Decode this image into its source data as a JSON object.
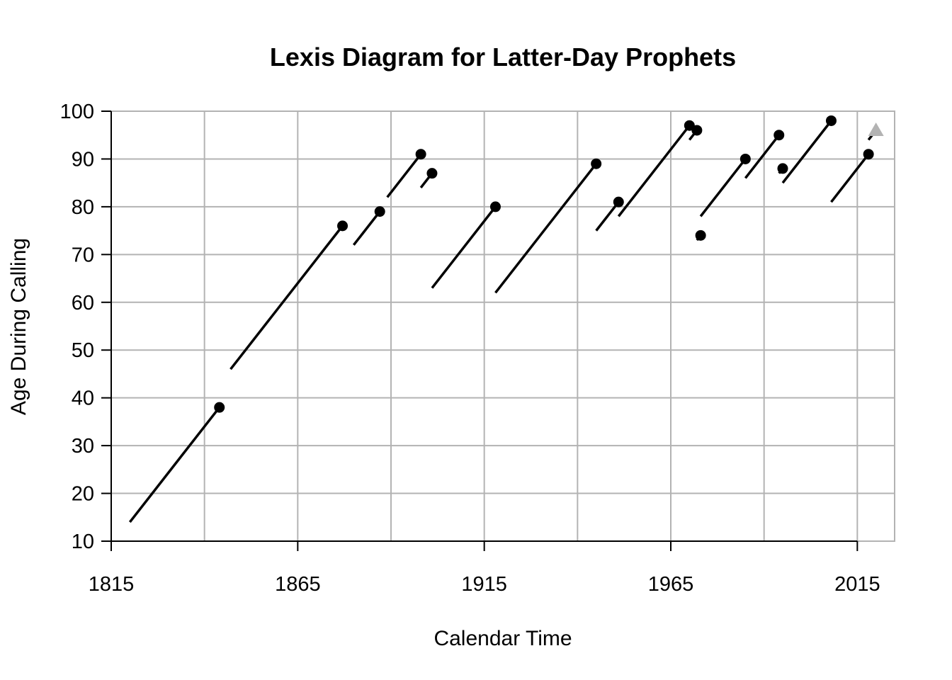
{
  "chart_data": {
    "type": "line",
    "title": "Lexis Diagram for Latter-Day Prophets",
    "xlabel": "Calendar Time",
    "ylabel": "Age During Calling",
    "xlim": [
      1815,
      2025
    ],
    "ylim": [
      10,
      100
    ],
    "x_ticks": [
      1815,
      1865,
      1915,
      1965,
      2015
    ],
    "y_ticks": [
      10,
      20,
      30,
      40,
      50,
      60,
      70,
      80,
      90,
      100
    ],
    "grid": true,
    "grid_color": "#b3b3b3",
    "line_color": "#000000",
    "point_color": "#000000",
    "living_marker_color": "#b3b3b3",
    "series": [
      {
        "start": [
          1820,
          14
        ],
        "end": [
          1844,
          38
        ],
        "end_marker": "point"
      },
      {
        "start": [
          1847,
          46
        ],
        "end": [
          1877,
          76
        ],
        "end_marker": "point"
      },
      {
        "start": [
          1880,
          72
        ],
        "end": [
          1887,
          79
        ],
        "end_marker": "point"
      },
      {
        "start": [
          1889,
          82
        ],
        "end": [
          1898,
          91
        ],
        "end_marker": "point"
      },
      {
        "start": [
          1898,
          84
        ],
        "end": [
          1901,
          87
        ],
        "end_marker": "point"
      },
      {
        "start": [
          1901,
          63
        ],
        "end": [
          1918,
          80
        ],
        "end_marker": "point"
      },
      {
        "start": [
          1918,
          62
        ],
        "end": [
          1945,
          89
        ],
        "end_marker": "point"
      },
      {
        "start": [
          1945,
          75
        ],
        "end": [
          1951,
          81
        ],
        "end_marker": "point"
      },
      {
        "start": [
          1951,
          78
        ],
        "end": [
          1970,
          97
        ],
        "end_marker": "point"
      },
      {
        "start": [
          1970,
          94
        ],
        "end": [
          1972,
          96
        ],
        "end_marker": "point"
      },
      {
        "start": [
          1972,
          73
        ],
        "end": [
          1973,
          74
        ],
        "end_marker": "point"
      },
      {
        "start": [
          1973,
          78
        ],
        "end": [
          1985,
          90
        ],
        "end_marker": "point"
      },
      {
        "start": [
          1985,
          86
        ],
        "end": [
          1994,
          95
        ],
        "end_marker": "point"
      },
      {
        "start": [
          1994,
          87
        ],
        "end": [
          1995,
          88
        ],
        "end_marker": "point"
      },
      {
        "start": [
          1995,
          85
        ],
        "end": [
          2008,
          98
        ],
        "end_marker": "point"
      },
      {
        "start": [
          2008,
          81
        ],
        "end": [
          2018,
          91
        ],
        "end_marker": "point"
      },
      {
        "start": [
          2018,
          94
        ],
        "end": [
          2020,
          96
        ],
        "end_marker": "triangle"
      }
    ]
  }
}
